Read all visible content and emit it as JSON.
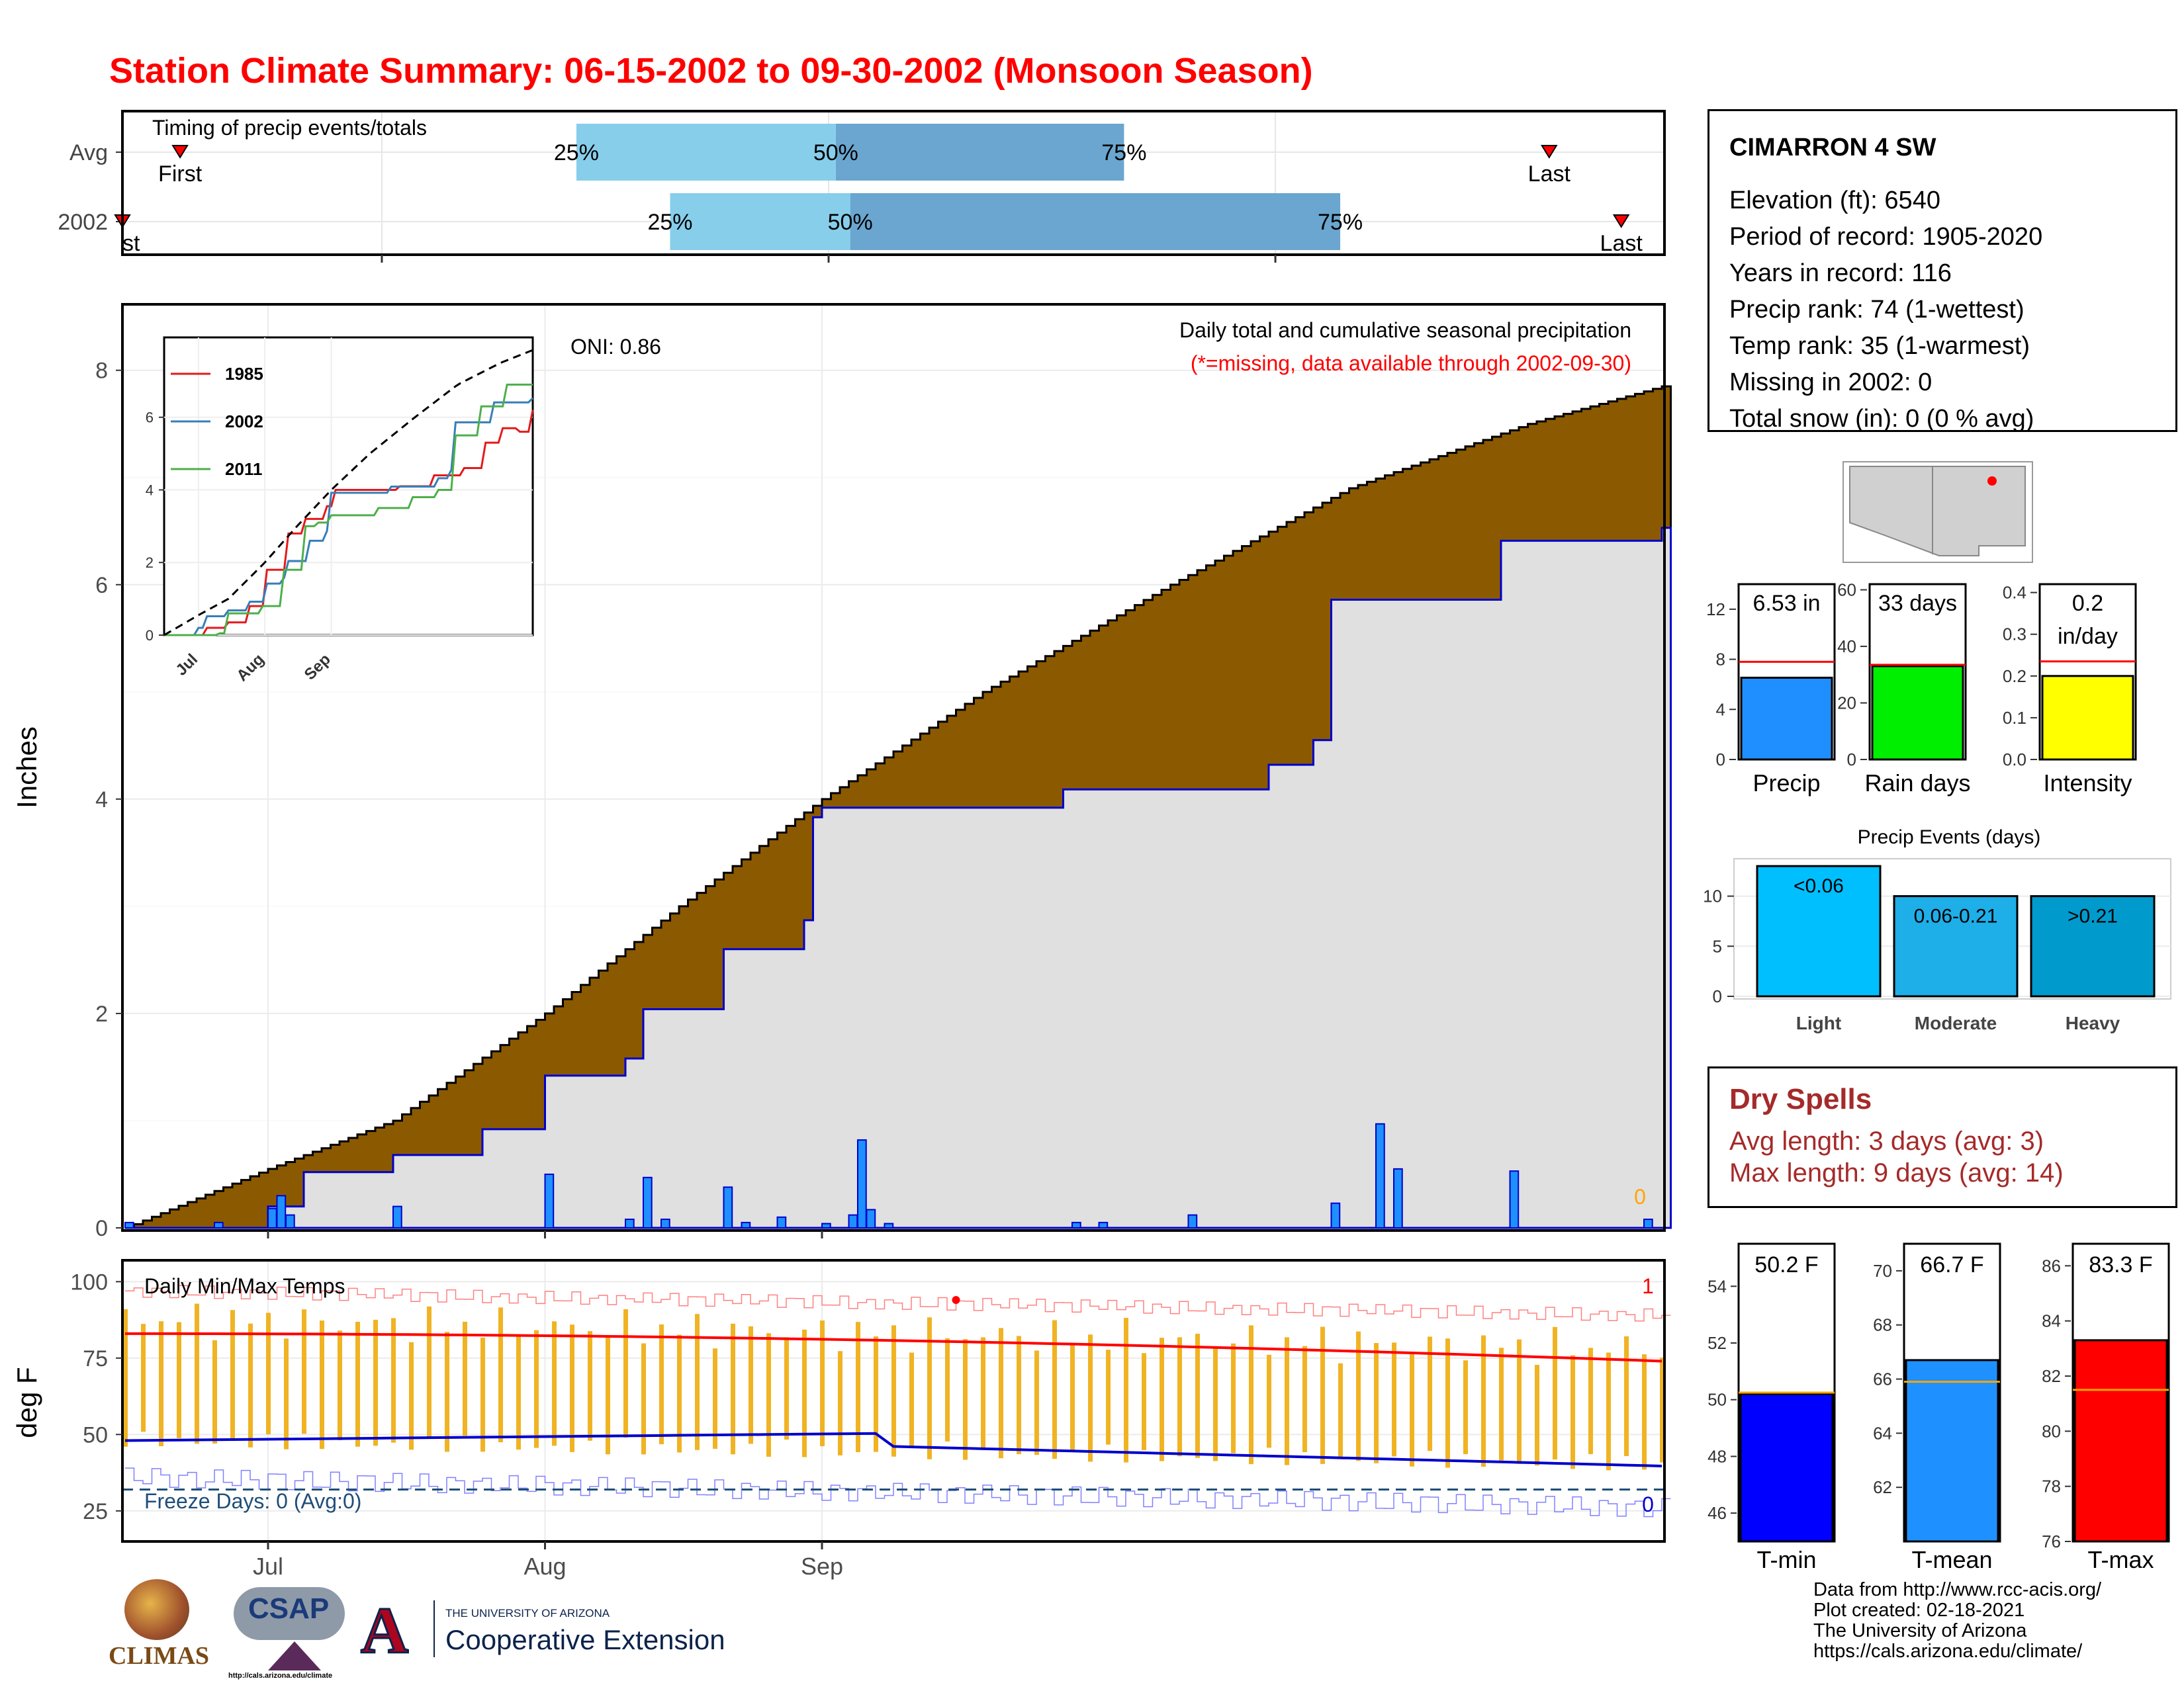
{
  "title": "Station Climate Summary: 06-15-2002 to 09-30-2002 (Monsoon Season)",
  "timing": {
    "label": "Timing of precip events/totals",
    "rows": [
      {
        "name": "Avg",
        "first_label": "First",
        "last_label": "Last",
        "first": 2,
        "last": 97,
        "p25": 29.5,
        "p50": 47.5,
        "p75": 67.5
      },
      {
        "name": "2002",
        "first_label": "st",
        "last_label": "Last",
        "first": -2,
        "last": 102,
        "p25": 36,
        "p50": 48.5,
        "p75": 82.5
      }
    ],
    "pct_labels": [
      "25%",
      "50%",
      "75%"
    ]
  },
  "station": {
    "name": "CIMARRON 4 SW",
    "lines": [
      "Elevation (ft): 6540",
      "Period of record: 1905-2020",
      "Years in record: 116",
      "Precip rank: 74 (1-wettest)",
      "Temp rank: 35 (1-warmest)",
      "Missing in 2002: 0",
      "Total snow (in): 0 (0 % avg)"
    ]
  },
  "main_plot": {
    "ylabel": "Inches",
    "heading": "Daily total and cumulative seasonal precipitation",
    "note": "(*=missing, data available through 2002-09-30)",
    "oni": "ONI: 0.86",
    "corner_value": "0",
    "yticks": [
      "0",
      "2",
      "4",
      "6",
      "8"
    ],
    "xticks": [
      "Jul",
      "Aug",
      "Sep"
    ]
  },
  "inset": {
    "legend": [
      "1985",
      "2002",
      "2011"
    ],
    "yticks": [
      "0",
      "2",
      "4",
      "6"
    ],
    "xticks": [
      "Jul",
      "Aug",
      "Sep"
    ]
  },
  "summary_bars": [
    {
      "label": "Precip",
      "value_text": "6.53 in",
      "yticks": [
        "0",
        "4",
        "8",
        "12"
      ],
      "value": 6.53,
      "avg": 7.8,
      "max": 14,
      "color": "#1f8fff"
    },
    {
      "label": "Rain days",
      "value_text": "33 days",
      "yticks": [
        "0",
        "20",
        "40",
        "60"
      ],
      "value": 33,
      "avg": 33.5,
      "max": 62,
      "color": "#00ee00"
    },
    {
      "label": "Intensity",
      "value_text_1": "0.2",
      "value_text_2": "in/day",
      "yticks": [
        "0.0",
        "0.1",
        "0.2",
        "0.3",
        "0.4"
      ],
      "value": 0.2,
      "avg": 0.235,
      "max": 0.42,
      "color": "#ffff00"
    }
  ],
  "events": {
    "title": "Precip Events (days)",
    "yticks": [
      "0",
      "5",
      "10"
    ],
    "bars": [
      {
        "label": "Light",
        "inner": "<0.06",
        "value": 13,
        "color": "#00bfff"
      },
      {
        "label": "Moderate",
        "inner": "0.06-0.21",
        "value": 10,
        "color": "#1eaee8"
      },
      {
        "label": "Heavy",
        "inner": ">0.21",
        "value": 10,
        "color": "#009acd"
      }
    ]
  },
  "dry_spells": {
    "title": "Dry Spells",
    "avg_line": "Avg length: 3 days (avg: 3)",
    "max_line": "Max length: 9 days (avg: 14)"
  },
  "temps": {
    "ylabel": "deg F",
    "heading": "Daily Min/Max Temps",
    "freeze_text": "Freeze Days: 0 (Avg:0)",
    "top_right": "1",
    "bottom_right": "0",
    "yticks": [
      "25",
      "50",
      "75",
      "100"
    ],
    "xticks": [
      "Jul",
      "Aug",
      "Sep"
    ]
  },
  "temp_bars": [
    {
      "label": "T-min",
      "value_text": "50.2 F",
      "yticks": [
        "46",
        "48",
        "50",
        "52",
        "54"
      ],
      "ymin": 45,
      "ymax": 55.5,
      "value": 50.2,
      "avg": 50.25,
      "color": "#0000ff"
    },
    {
      "label": "T-mean",
      "value_text": "66.7 F",
      "yticks": [
        "62",
        "64",
        "66",
        "68",
        "70"
      ],
      "ymin": 60,
      "ymax": 71,
      "value": 66.7,
      "avg": 65.9,
      "color": "#1e90ff"
    },
    {
      "label": "T-max",
      "value_text": "83.3 F",
      "yticks": [
        "76",
        "78",
        "80",
        "82",
        "84",
        "86"
      ],
      "ymin": 76,
      "ymax": 86.8,
      "value": 83.3,
      "avg": 81.5,
      "color": "#ff0000"
    }
  ],
  "footer": {
    "lines": [
      "Data from http://www.rcc-acis.org/",
      "Plot created: 02-18-2021",
      "The University of Arizona",
      "https://cals.arizona.edu/climate/"
    ],
    "logos": {
      "climas": "CLIMAS",
      "csap": "CSAP",
      "csap_url": "http://cals.arizona.edu/climate",
      "ua_small": "THE UNIVERSITY OF ARIZONA",
      "ua_big": "Cooperative Extension"
    }
  },
  "chart_data": {
    "type": "area",
    "title": "Daily total and cumulative seasonal precipitation",
    "ylabel": "Inches",
    "ylim": [
      0,
      8.6
    ],
    "x_range": [
      "06-15",
      "09-30"
    ],
    "series": [
      {
        "name": "Avg",
        "cumulative_checkpoints": [
          [
            0,
            0.0
          ],
          [
            16,
            0.55
          ],
          [
            30,
            1.0
          ],
          [
            47,
            2.0
          ],
          [
            62,
            3.0
          ],
          [
            78,
            4.0
          ],
          [
            96,
            5.0
          ],
          [
            117,
            6.0
          ],
          [
            137,
            6.9
          ],
          [
            157,
            7.5
          ],
          [
            172,
            7.85
          ]
        ]
      },
      {
        "name": "2002",
        "cumulative_checkpoints": [
          [
            0,
            0.0
          ],
          [
            16,
            0.2
          ],
          [
            20,
            0.52
          ],
          [
            30,
            0.68
          ],
          [
            40,
            0.92
          ],
          [
            47,
            1.42
          ],
          [
            56,
            1.58
          ],
          [
            58,
            2.04
          ],
          [
            67,
            2.6
          ],
          [
            76,
            2.87
          ],
          [
            77,
            3.83
          ],
          [
            78,
            3.92
          ],
          [
            105,
            4.09
          ],
          [
            128,
            4.32
          ],
          [
            133,
            4.55
          ],
          [
            135,
            5.86
          ],
          [
            154,
            6.41
          ],
          [
            172,
            6.53
          ]
        ]
      }
    ],
    "daily_bars": [
      [
        0,
        0.05
      ],
      [
        10,
        0.05
      ],
      [
        16,
        0.18
      ],
      [
        17,
        0.3
      ],
      [
        18,
        0.12
      ],
      [
        30,
        0.2
      ],
      [
        47,
        0.5
      ],
      [
        56,
        0.08
      ],
      [
        58,
        0.47
      ],
      [
        60,
        0.08
      ],
      [
        67,
        0.38
      ],
      [
        69,
        0.05
      ],
      [
        73,
        0.1
      ],
      [
        78,
        0.04
      ],
      [
        81,
        0.12
      ],
      [
        82,
        0.82
      ],
      [
        83,
        0.17
      ],
      [
        85,
        0.04
      ],
      [
        106,
        0.05
      ],
      [
        109,
        0.05
      ],
      [
        119,
        0.12
      ],
      [
        135,
        0.23
      ],
      [
        140,
        0.97
      ],
      [
        142,
        0.55
      ],
      [
        155,
        0.53
      ],
      [
        170,
        0.08
      ]
    ],
    "temps": {
      "avg_max_start": 83,
      "avg_max_end": 74,
      "avg_min_start": 48,
      "avg_min_end": 40,
      "freeze_line": 32,
      "ylim": [
        15,
        107
      ]
    },
    "inset_series": [
      {
        "name": "1985",
        "color": "#e41a1c",
        "end": 6.2
      },
      {
        "name": "2002",
        "color": "#377eb8",
        "end": 6.53
      },
      {
        "name": "2011",
        "color": "#4daf4a",
        "end": 6.9
      },
      {
        "name": "Avg",
        "color": "#000000",
        "end": 7.85
      }
    ]
  }
}
